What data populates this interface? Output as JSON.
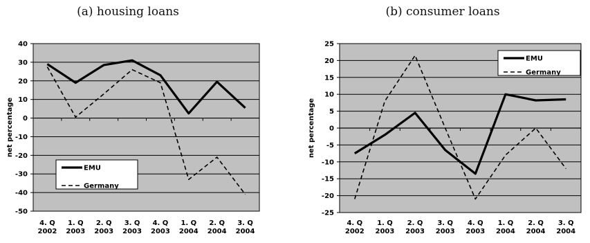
{
  "chart_data": [
    {
      "type": "line",
      "title": "(a)  housing loans",
      "ylabel": "net percentage",
      "xlabel": "",
      "categories": [
        [
          "4. Q",
          "2002"
        ],
        [
          "1. Q",
          "2003"
        ],
        [
          "2. Q",
          "2003"
        ],
        [
          "3. Q",
          "2003"
        ],
        [
          "4. Q",
          "2003"
        ],
        [
          "1. Q",
          "2004"
        ],
        [
          "2. Q",
          "2004"
        ],
        [
          "3. Q",
          "2004"
        ]
      ],
      "ylim": [
        -50,
        40
      ],
      "yticks": [
        40,
        30,
        20,
        10,
        0,
        -10,
        -20,
        -30,
        -40,
        -50
      ],
      "grid": true,
      "legend_position": "bottom-left",
      "series": [
        {
          "name": "EMU",
          "style": "solid",
          "values": [
            29,
            19,
            28.5,
            31,
            23,
            2.5,
            19.5,
            5.5
          ]
        },
        {
          "name": "Germany",
          "style": "dashed",
          "values": [
            27.5,
            0.5,
            13,
            26,
            19,
            -33,
            -21,
            -41
          ]
        }
      ]
    },
    {
      "type": "line",
      "title": "(b)  consumer loans",
      "ylabel": "net percentage",
      "xlabel": "",
      "categories": [
        [
          "4. Q",
          "2002"
        ],
        [
          "1. Q",
          "2003"
        ],
        [
          "2. Q",
          "2003"
        ],
        [
          "3. Q",
          "2003"
        ],
        [
          "4. Q",
          "2003"
        ],
        [
          "1. Q",
          "2004"
        ],
        [
          "2. Q",
          "2004"
        ],
        [
          "3. Q",
          "2004"
        ]
      ],
      "ylim": [
        -25,
        25
      ],
      "yticks": [
        25,
        20,
        15,
        10,
        5,
        0,
        -5,
        -10,
        -15,
        -20,
        -25
      ],
      "grid": true,
      "legend_position": "top-right",
      "series": [
        {
          "name": "EMU",
          "style": "solid",
          "values": [
            -7.5,
            -2,
            4.5,
            -6.5,
            -13.5,
            10,
            8.2,
            8.5
          ]
        },
        {
          "name": "Germany",
          "style": "dashed",
          "values": [
            -21,
            8,
            21.5,
            0,
            -21,
            -8,
            0,
            -12
          ]
        }
      ]
    }
  ],
  "colors": {
    "plot_background": "#c0c0c0",
    "grid": "#000000",
    "line": "#000000"
  }
}
